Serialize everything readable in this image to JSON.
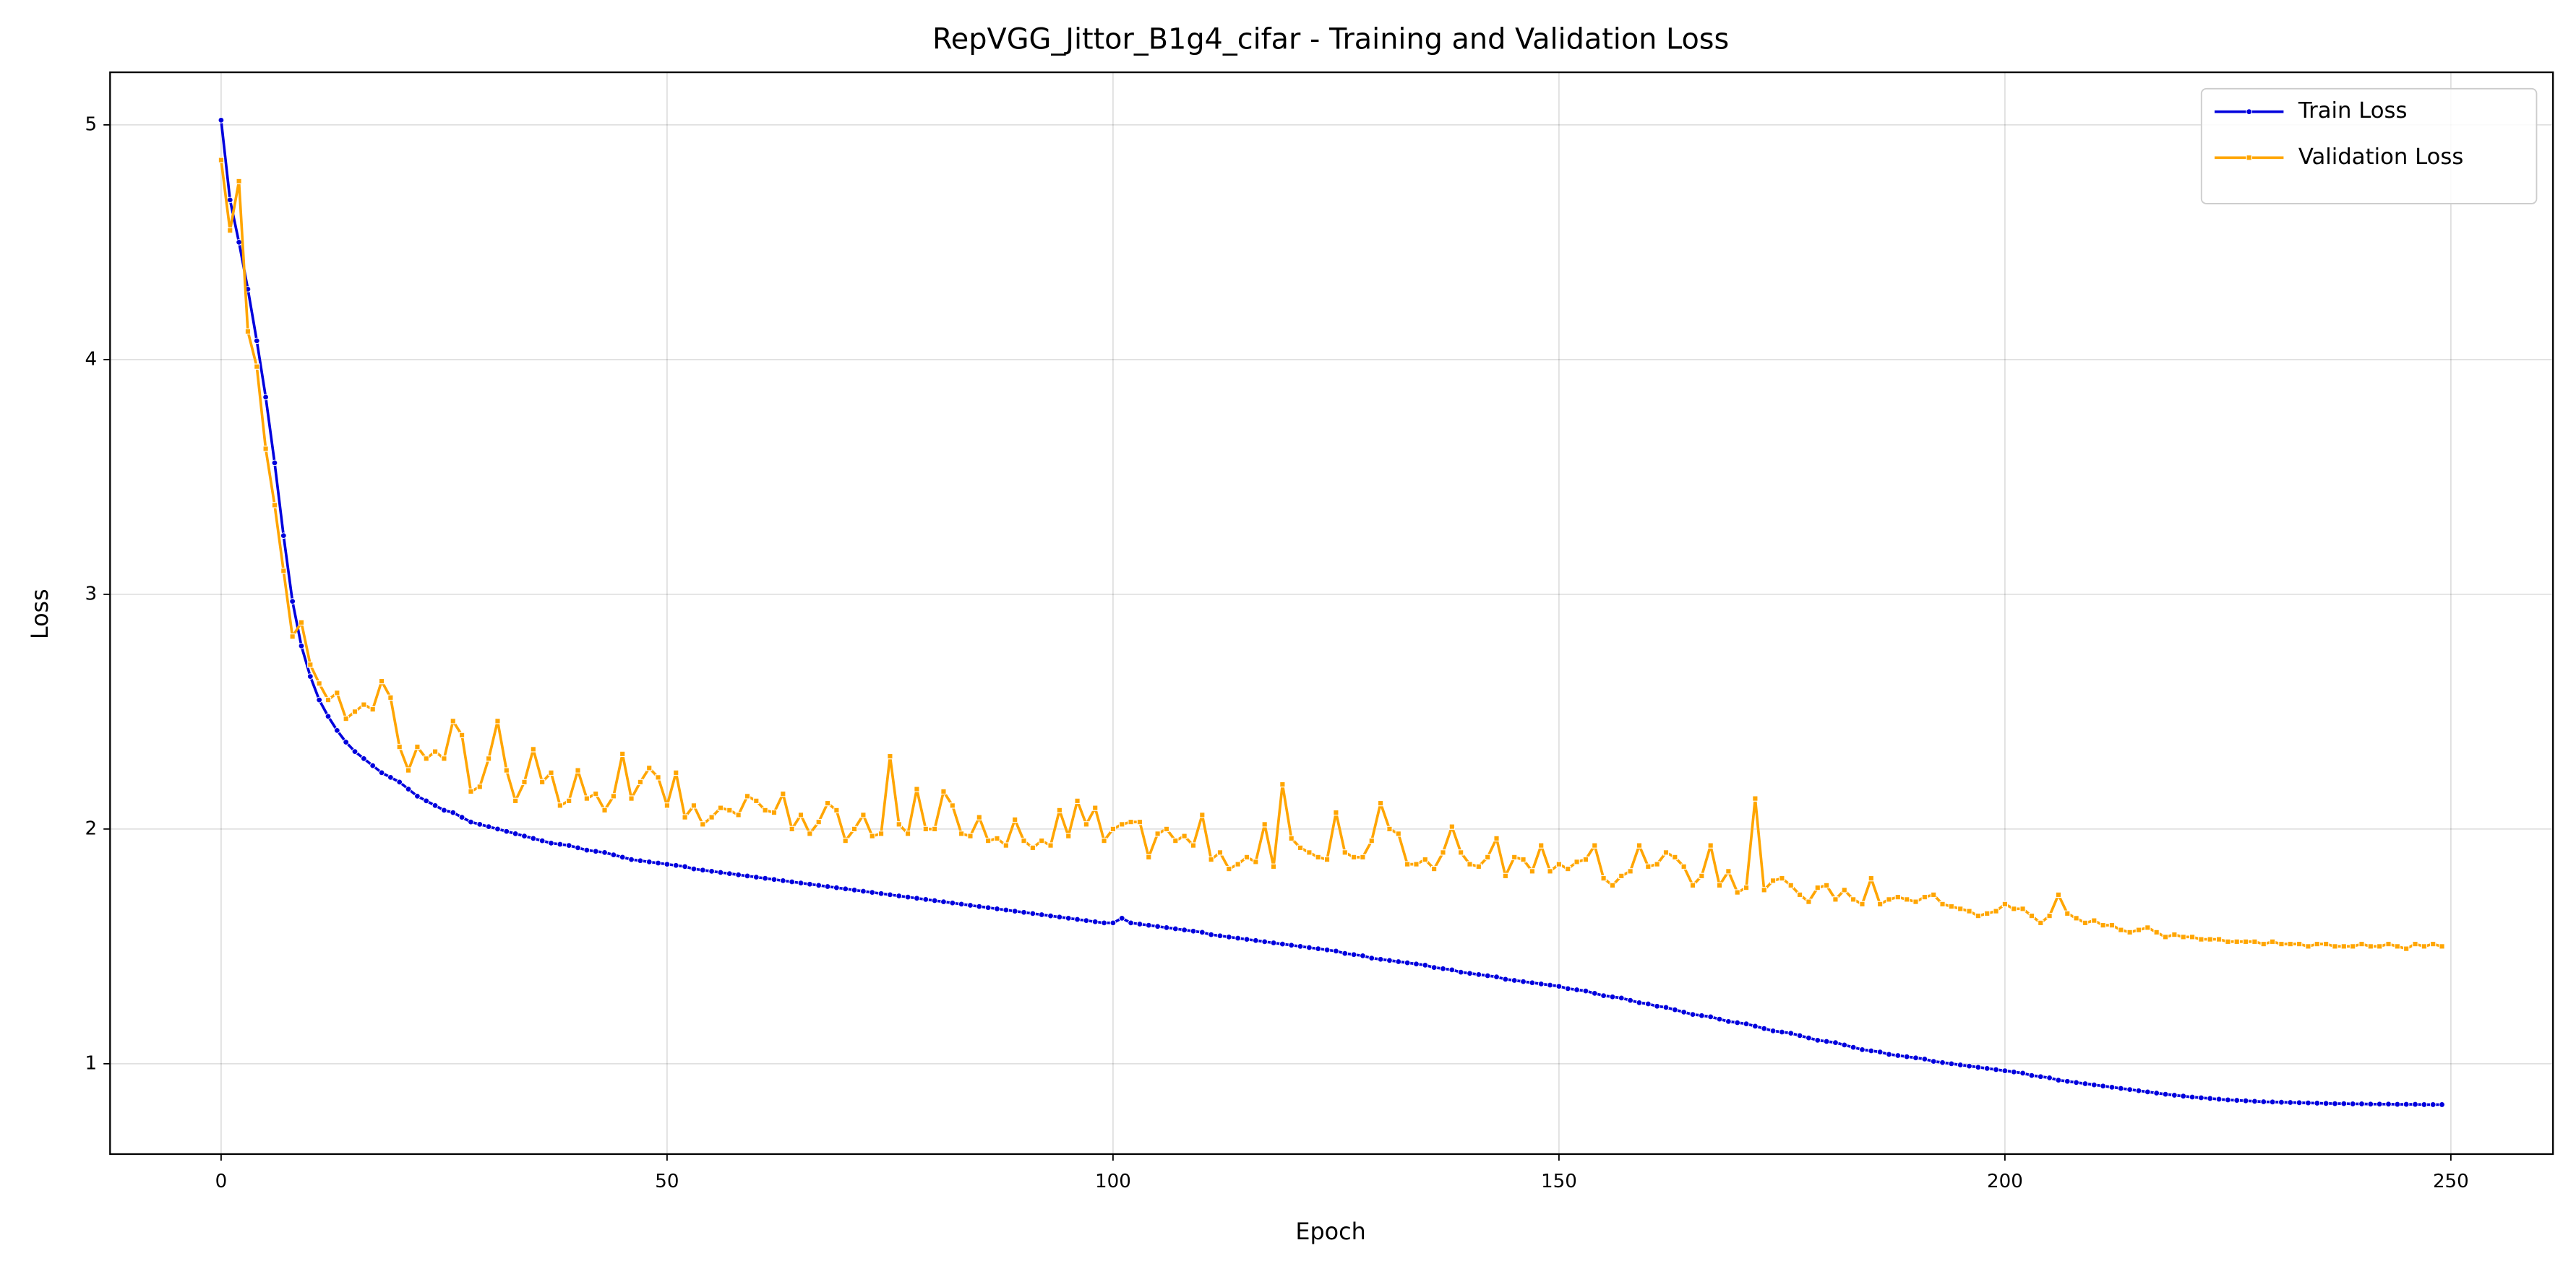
{
  "chart_data": {
    "type": "line",
    "title": "RepVGG_Jittor_B1g4_cifar - Training and Validation Loss",
    "x_label": "Epoch",
    "y_label": "Loss",
    "x": [
      0,
      1,
      2,
      3,
      4,
      5,
      6,
      7,
      8,
      9,
      10,
      11,
      12,
      13,
      14,
      15,
      16,
      17,
      18,
      19,
      20,
      21,
      22,
      23,
      24,
      25,
      26,
      27,
      28,
      29,
      30,
      31,
      32,
      33,
      34,
      35,
      36,
      37,
      38,
      39,
      40,
      41,
      42,
      43,
      44,
      45,
      46,
      47,
      48,
      49,
      50,
      51,
      52,
      53,
      54,
      55,
      56,
      57,
      58,
      59,
      60,
      61,
      62,
      63,
      64,
      65,
      66,
      67,
      68,
      69,
      70,
      71,
      72,
      73,
      74,
      75,
      76,
      77,
      78,
      79,
      80,
      81,
      82,
      83,
      84,
      85,
      86,
      87,
      88,
      89,
      90,
      91,
      92,
      93,
      94,
      95,
      96,
      97,
      98,
      99,
      100,
      101,
      102,
      103,
      104,
      105,
      106,
      107,
      108,
      109,
      110,
      111,
      112,
      113,
      114,
      115,
      116,
      117,
      118,
      119,
      120,
      121,
      122,
      123,
      124,
      125,
      126,
      127,
      128,
      129,
      130,
      131,
      132,
      133,
      134,
      135,
      136,
      137,
      138,
      139,
      140,
      141,
      142,
      143,
      144,
      145,
      146,
      147,
      148,
      149,
      150,
      151,
      152,
      153,
      154,
      155,
      156,
      157,
      158,
      159,
      160,
      161,
      162,
      163,
      164,
      165,
      166,
      167,
      168,
      169,
      170,
      171,
      172,
      173,
      174,
      175,
      176,
      177,
      178,
      179,
      180,
      181,
      182,
      183,
      184,
      185,
      186,
      187,
      188,
      189,
      190,
      191,
      192,
      193,
      194,
      195,
      196,
      197,
      198,
      199,
      200,
      201,
      202,
      203,
      204,
      205,
      206,
      207,
      208,
      209,
      210,
      211,
      212,
      213,
      214,
      215,
      216,
      217,
      218,
      219,
      220,
      221,
      222,
      223,
      224,
      225,
      226,
      227,
      228,
      229,
      230,
      231,
      232,
      233,
      234,
      235,
      236,
      237,
      238,
      239,
      240,
      241,
      242,
      243,
      244,
      245,
      246,
      247,
      248,
      249
    ],
    "series": [
      {
        "name": "Train Loss",
        "color": "#0000dd",
        "marker": "circle",
        "values": [
          5.02,
          4.68,
          4.5,
          4.3,
          4.08,
          3.84,
          3.56,
          3.25,
          2.97,
          2.78,
          2.65,
          2.55,
          2.48,
          2.42,
          2.37,
          2.33,
          2.3,
          2.27,
          2.24,
          2.22,
          2.2,
          2.17,
          2.14,
          2.12,
          2.1,
          2.08,
          2.07,
          2.05,
          2.03,
          2.02,
          2.01,
          2.0,
          1.99,
          1.98,
          1.97,
          1.96,
          1.95,
          1.94,
          1.935,
          1.93,
          1.92,
          1.91,
          1.905,
          1.9,
          1.89,
          1.88,
          1.87,
          1.865,
          1.86,
          1.855,
          1.85,
          1.845,
          1.84,
          1.83,
          1.825,
          1.82,
          1.815,
          1.81,
          1.805,
          1.8,
          1.795,
          1.79,
          1.785,
          1.78,
          1.775,
          1.77,
          1.765,
          1.76,
          1.755,
          1.75,
          1.745,
          1.74,
          1.735,
          1.73,
          1.725,
          1.72,
          1.715,
          1.71,
          1.705,
          1.7,
          1.695,
          1.69,
          1.685,
          1.68,
          1.675,
          1.67,
          1.665,
          1.66,
          1.655,
          1.65,
          1.645,
          1.64,
          1.635,
          1.63,
          1.625,
          1.62,
          1.615,
          1.61,
          1.605,
          1.6,
          1.6,
          1.62,
          1.6,
          1.595,
          1.59,
          1.585,
          1.58,
          1.575,
          1.57,
          1.565,
          1.56,
          1.55,
          1.545,
          1.54,
          1.535,
          1.53,
          1.525,
          1.52,
          1.515,
          1.51,
          1.505,
          1.5,
          1.495,
          1.49,
          1.485,
          1.48,
          1.47,
          1.465,
          1.46,
          1.45,
          1.445,
          1.44,
          1.435,
          1.43,
          1.425,
          1.42,
          1.41,
          1.405,
          1.4,
          1.39,
          1.385,
          1.38,
          1.375,
          1.37,
          1.36,
          1.355,
          1.35,
          1.345,
          1.34,
          1.335,
          1.33,
          1.32,
          1.315,
          1.31,
          1.3,
          1.29,
          1.285,
          1.28,
          1.27,
          1.26,
          1.255,
          1.245,
          1.24,
          1.23,
          1.22,
          1.21,
          1.205,
          1.2,
          1.19,
          1.18,
          1.175,
          1.17,
          1.16,
          1.15,
          1.14,
          1.135,
          1.13,
          1.12,
          1.11,
          1.1,
          1.095,
          1.09,
          1.08,
          1.07,
          1.06,
          1.055,
          1.05,
          1.04,
          1.035,
          1.03,
          1.025,
          1.02,
          1.01,
          1.005,
          1.0,
          0.995,
          0.99,
          0.985,
          0.98,
          0.975,
          0.97,
          0.965,
          0.96,
          0.95,
          0.945,
          0.94,
          0.93,
          0.925,
          0.92,
          0.915,
          0.91,
          0.905,
          0.9,
          0.895,
          0.89,
          0.885,
          0.88,
          0.875,
          0.87,
          0.866,
          0.862,
          0.858,
          0.855,
          0.852,
          0.849,
          0.846,
          0.844,
          0.842,
          0.84,
          0.838,
          0.837,
          0.836,
          0.835,
          0.834,
          0.833,
          0.832,
          0.831,
          0.83,
          0.83,
          0.829,
          0.829,
          0.828,
          0.828,
          0.828,
          0.827,
          0.827,
          0.827,
          0.826,
          0.826,
          0.826
        ]
      },
      {
        "name": "Validation Loss",
        "color": "#ffa500",
        "marker": "square",
        "values": [
          4.85,
          4.55,
          4.76,
          4.12,
          3.97,
          3.62,
          3.38,
          3.1,
          2.82,
          2.88,
          2.7,
          2.62,
          2.55,
          2.58,
          2.47,
          2.5,
          2.53,
          2.51,
          2.63,
          2.56,
          2.35,
          2.25,
          2.35,
          2.3,
          2.33,
          2.3,
          2.46,
          2.4,
          2.16,
          2.18,
          2.3,
          2.46,
          2.25,
          2.12,
          2.2,
          2.34,
          2.2,
          2.24,
          2.1,
          2.12,
          2.25,
          2.13,
          2.15,
          2.08,
          2.14,
          2.32,
          2.13,
          2.2,
          2.26,
          2.22,
          2.1,
          2.24,
          2.05,
          2.1,
          2.02,
          2.05,
          2.09,
          2.08,
          2.06,
          2.14,
          2.12,
          2.08,
          2.07,
          2.15,
          2.0,
          2.06,
          1.98,
          2.03,
          2.11,
          2.08,
          1.95,
          2.0,
          2.06,
          1.97,
          1.98,
          2.31,
          2.02,
          1.98,
          2.17,
          2.0,
          2.0,
          2.16,
          2.1,
          1.98,
          1.97,
          2.05,
          1.95,
          1.96,
          1.93,
          2.04,
          1.95,
          1.92,
          1.95,
          1.93,
          2.08,
          1.97,
          2.12,
          2.02,
          2.09,
          1.95,
          2.0,
          2.02,
          2.03,
          2.03,
          1.88,
          1.98,
          2.0,
          1.95,
          1.97,
          1.93,
          2.06,
          1.87,
          1.9,
          1.83,
          1.85,
          1.88,
          1.86,
          2.02,
          1.84,
          2.19,
          1.96,
          1.92,
          1.9,
          1.88,
          1.87,
          2.07,
          1.9,
          1.88,
          1.88,
          1.95,
          2.11,
          2.0,
          1.98,
          1.85,
          1.85,
          1.87,
          1.83,
          1.9,
          2.01,
          1.9,
          1.85,
          1.84,
          1.88,
          1.96,
          1.8,
          1.88,
          1.87,
          1.82,
          1.93,
          1.82,
          1.85,
          1.83,
          1.86,
          1.87,
          1.93,
          1.79,
          1.76,
          1.8,
          1.82,
          1.93,
          1.84,
          1.85,
          1.9,
          1.88,
          1.84,
          1.76,
          1.8,
          1.93,
          1.76,
          1.82,
          1.73,
          1.75,
          2.13,
          1.74,
          1.78,
          1.79,
          1.76,
          1.72,
          1.69,
          1.75,
          1.76,
          1.7,
          1.74,
          1.7,
          1.68,
          1.79,
          1.68,
          1.7,
          1.71,
          1.7,
          1.69,
          1.71,
          1.72,
          1.68,
          1.67,
          1.66,
          1.65,
          1.63,
          1.64,
          1.65,
          1.68,
          1.66,
          1.66,
          1.63,
          1.6,
          1.63,
          1.72,
          1.64,
          1.62,
          1.6,
          1.61,
          1.59,
          1.59,
          1.57,
          1.56,
          1.57,
          1.58,
          1.56,
          1.54,
          1.55,
          1.54,
          1.54,
          1.53,
          1.53,
          1.53,
          1.52,
          1.52,
          1.52,
          1.52,
          1.51,
          1.52,
          1.51,
          1.51,
          1.51,
          1.5,
          1.51,
          1.51,
          1.5,
          1.5,
          1.5,
          1.51,
          1.5,
          1.5,
          1.51,
          1.5,
          1.49,
          1.51,
          1.5,
          1.51,
          1.5
        ]
      }
    ],
    "xlim": [
      -12.45,
      261.45
    ],
    "xticks": [
      0,
      50,
      100,
      150,
      200,
      250
    ],
    "ylim": [
      0.615,
      5.224
    ],
    "yticks": [
      1,
      2,
      3,
      4,
      5
    ],
    "grid": true,
    "legend": "upper right"
  }
}
